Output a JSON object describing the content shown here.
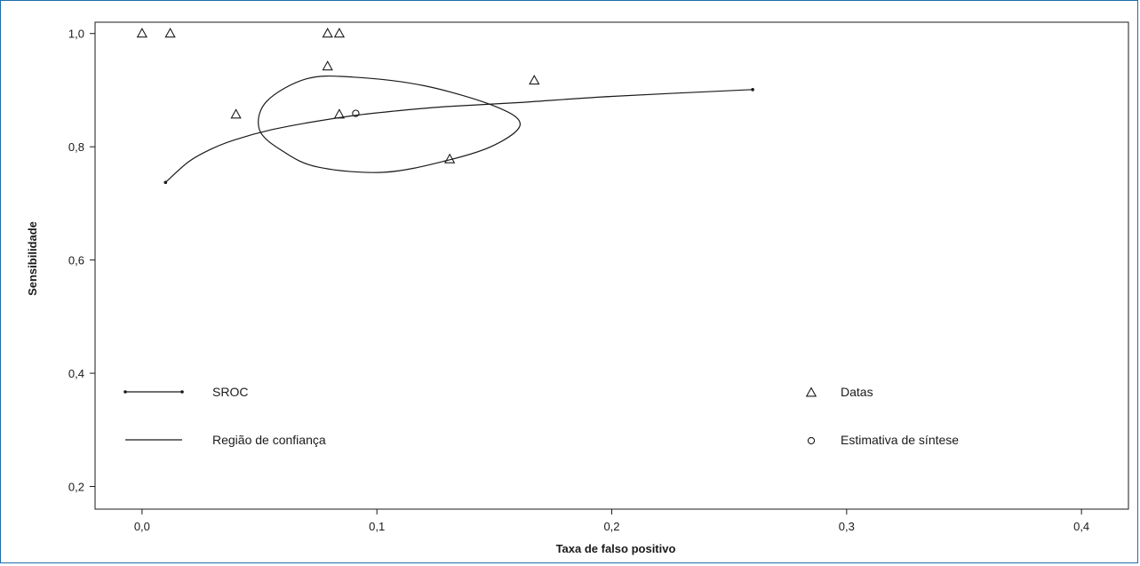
{
  "chart_data": {
    "type": "scatter",
    "xlabel": "Taxa de falso positivo",
    "ylabel": "Sensibilidade",
    "xlim": [
      -0.02,
      0.42
    ],
    "ylim": [
      0.16,
      1.02
    ],
    "xticks": [
      0.0,
      0.1,
      0.2,
      0.3,
      0.4
    ],
    "xtick_labels": [
      "0,0",
      "0,1",
      "0,2",
      "0,3",
      "0,4"
    ],
    "yticks": [
      0.2,
      0.4,
      0.6,
      0.8,
      1.0
    ],
    "ytick_labels": [
      "0,2",
      "0,4",
      "0,6",
      "0,8",
      "1,0"
    ],
    "grid": false,
    "series": [
      {
        "name": "Datas",
        "marker": "triangle",
        "points": [
          {
            "x": 0.0,
            "y": 1.0
          },
          {
            "x": 0.012,
            "y": 1.0
          },
          {
            "x": 0.079,
            "y": 1.0
          },
          {
            "x": 0.084,
            "y": 1.0
          },
          {
            "x": 0.079,
            "y": 0.942
          },
          {
            "x": 0.04,
            "y": 0.857
          },
          {
            "x": 0.084,
            "y": 0.857
          },
          {
            "x": 0.167,
            "y": 0.917
          },
          {
            "x": 0.131,
            "y": 0.778
          }
        ]
      },
      {
        "name": "Estimativa de síntese",
        "marker": "circle",
        "points": [
          {
            "x": 0.091,
            "y": 0.859
          }
        ]
      },
      {
        "name": "SROC",
        "style": "line-with-end-dots",
        "points": [
          {
            "x": 0.01,
            "y": 0.737
          },
          {
            "x": 0.02,
            "y": 0.774
          },
          {
            "x": 0.03,
            "y": 0.797
          },
          {
            "x": 0.04,
            "y": 0.813
          },
          {
            "x": 0.055,
            "y": 0.83
          },
          {
            "x": 0.07,
            "y": 0.842
          },
          {
            "x": 0.09,
            "y": 0.855
          },
          {
            "x": 0.11,
            "y": 0.864
          },
          {
            "x": 0.13,
            "y": 0.871
          },
          {
            "x": 0.16,
            "y": 0.878
          },
          {
            "x": 0.2,
            "y": 0.889
          },
          {
            "x": 0.26,
            "y": 0.901
          }
        ]
      },
      {
        "name": "Região de confiança",
        "style": "closed-curve",
        "points": [
          {
            "x": 0.12,
            "y": 0.908
          },
          {
            "x": 0.15,
            "y": 0.872
          },
          {
            "x": 0.161,
            "y": 0.84
          },
          {
            "x": 0.15,
            "y": 0.803
          },
          {
            "x": 0.13,
            "y": 0.776
          },
          {
            "x": 0.103,
            "y": 0.755
          },
          {
            "x": 0.075,
            "y": 0.764
          },
          {
            "x": 0.06,
            "y": 0.792
          },
          {
            "x": 0.05,
            "y": 0.83
          },
          {
            "x": 0.053,
            "y": 0.88
          },
          {
            "x": 0.07,
            "y": 0.92
          },
          {
            "x": 0.09,
            "y": 0.923
          }
        ]
      }
    ],
    "legend": [
      {
        "label": "SROC",
        "symbol": "line-with-end-dots"
      },
      {
        "label": "Região de confiança",
        "symbol": "line"
      },
      {
        "label": "Datas",
        "symbol": "triangle"
      },
      {
        "label": "Estimativa de síntese",
        "symbol": "circle"
      }
    ],
    "legend_placement": "inside-bottom"
  },
  "colors": {
    "frame": "#1b6ea8",
    "ink": "#1a1a1a"
  }
}
